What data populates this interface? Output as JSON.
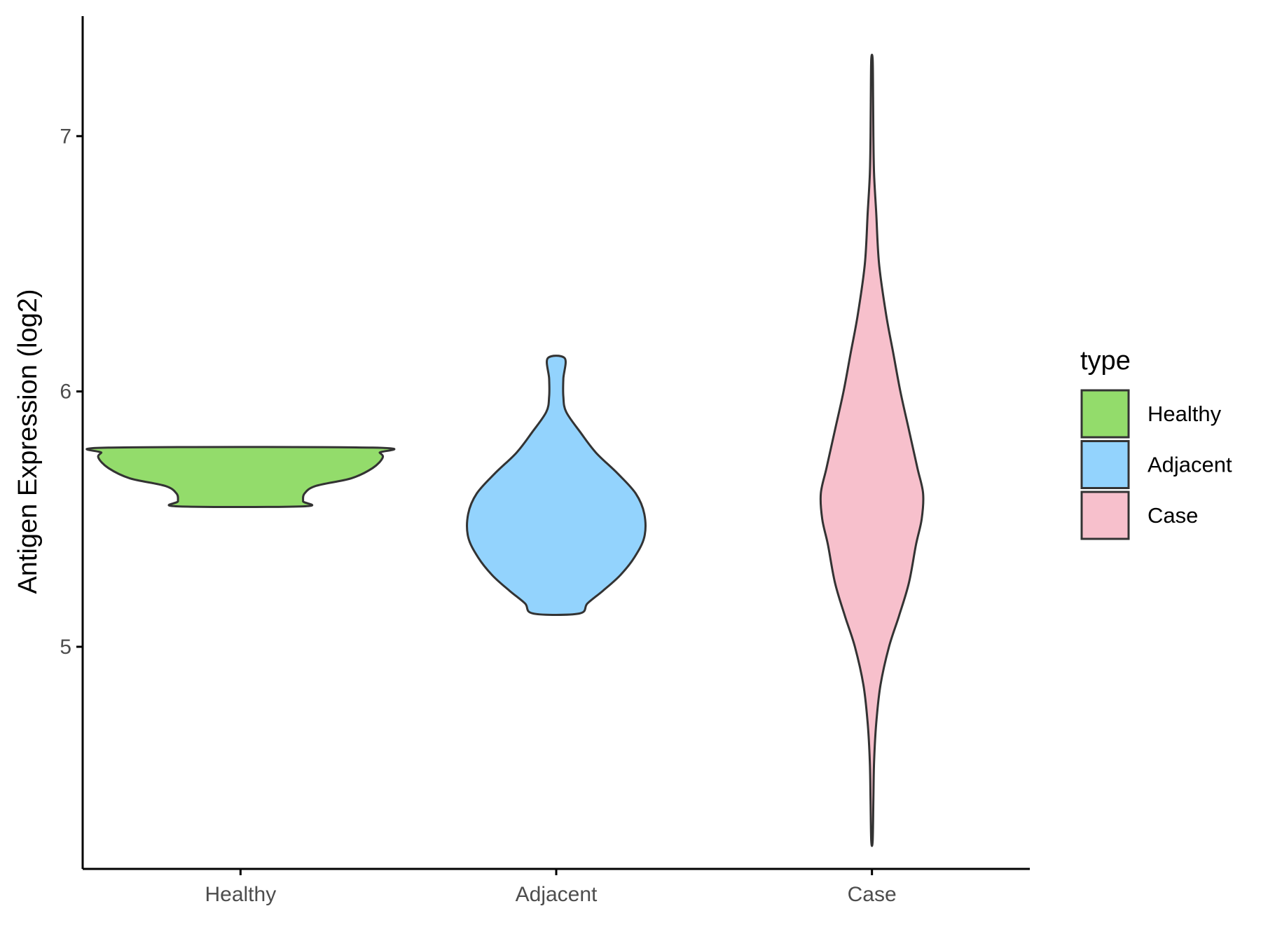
{
  "chart_data": {
    "type": "violin",
    "title": "",
    "xlabel": "",
    "ylabel": "Antigen Expression (log2)",
    "categories": [
      "Healthy",
      "Adjacent",
      "Case"
    ],
    "y_ticks": [
      5,
      6,
      7
    ],
    "ylim": [
      4.13,
      7.47
    ],
    "grid": false,
    "legend": {
      "title": "type",
      "position": "right",
      "items": [
        {
          "label": "Healthy",
          "color": "#93dc6b"
        },
        {
          "label": "Adjacent",
          "color": "#93d3fd"
        },
        {
          "label": "Case",
          "color": "#f7c0cc"
        }
      ]
    },
    "series": [
      {
        "category": "Healthy",
        "color": "#93dc6b",
        "min": 5.55,
        "max": 5.78,
        "density_profile": [
          [
            5.55,
            0.44
          ],
          [
            5.57,
            0.44
          ],
          [
            5.6,
            0.45
          ],
          [
            5.63,
            0.53
          ],
          [
            5.66,
            0.78
          ],
          [
            5.7,
            0.93
          ],
          [
            5.74,
            1.0
          ],
          [
            5.76,
            0.98
          ],
          [
            5.78,
            0.93
          ]
        ]
      },
      {
        "category": "Adjacent",
        "color": "#93d3fd",
        "min": 5.13,
        "max": 6.13,
        "density_profile": [
          [
            5.13,
            0.16
          ],
          [
            5.17,
            0.22
          ],
          [
            5.22,
            0.33
          ],
          [
            5.28,
            0.45
          ],
          [
            5.35,
            0.55
          ],
          [
            5.43,
            0.62
          ],
          [
            5.52,
            0.62
          ],
          [
            5.6,
            0.56
          ],
          [
            5.68,
            0.43
          ],
          [
            5.76,
            0.28
          ],
          [
            5.84,
            0.17
          ],
          [
            5.92,
            0.07
          ],
          [
            5.98,
            0.05
          ],
          [
            6.05,
            0.05
          ],
          [
            6.13,
            0.06
          ]
        ]
      },
      {
        "category": "Case",
        "color": "#f7c0cc",
        "min": 4.24,
        "max": 7.3,
        "density_profile": [
          [
            4.24,
            0.005
          ],
          [
            4.4,
            0.01
          ],
          [
            4.55,
            0.015
          ],
          [
            4.7,
            0.03
          ],
          [
            4.85,
            0.06
          ],
          [
            5.0,
            0.12
          ],
          [
            5.12,
            0.19
          ],
          [
            5.25,
            0.26
          ],
          [
            5.4,
            0.31
          ],
          [
            5.5,
            0.35
          ],
          [
            5.6,
            0.36
          ],
          [
            5.7,
            0.32
          ],
          [
            5.85,
            0.26
          ],
          [
            6.0,
            0.2
          ],
          [
            6.15,
            0.15
          ],
          [
            6.3,
            0.1
          ],
          [
            6.5,
            0.05
          ],
          [
            6.7,
            0.03
          ],
          [
            6.85,
            0.015
          ],
          [
            7.0,
            0.01
          ],
          [
            7.15,
            0.008
          ],
          [
            7.3,
            0.005
          ]
        ]
      }
    ]
  }
}
